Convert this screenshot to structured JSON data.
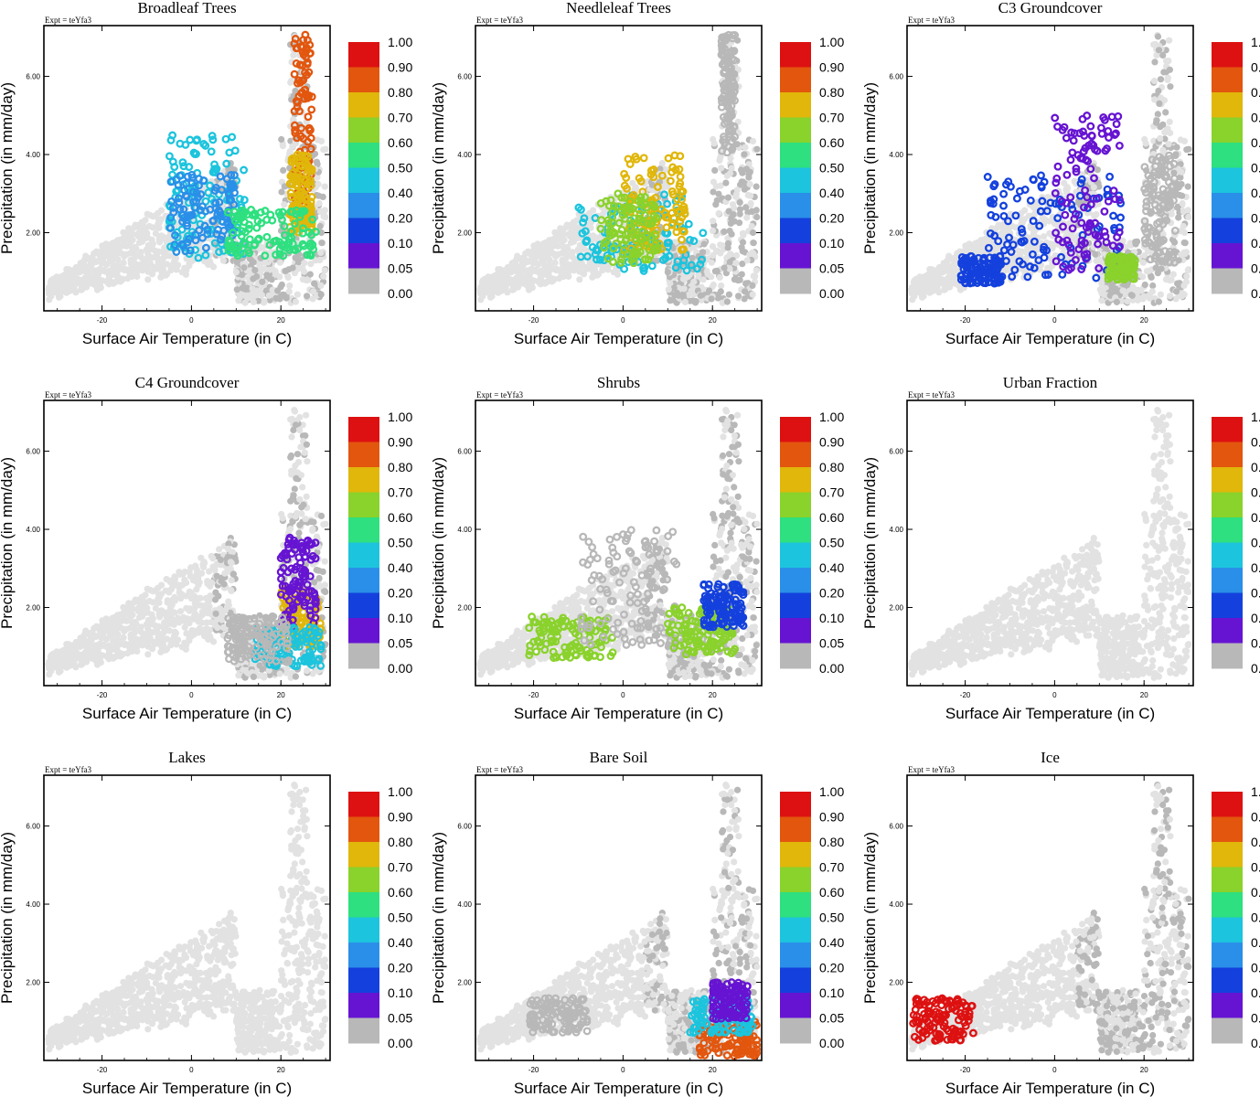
{
  "chart_data": {
    "type": "scatter",
    "layout": "3x3 grid of panels",
    "experiment_label": "Expt = teYfa3",
    "xlabel": "Surface Air Temperature (in C)",
    "ylabel": "Precipitation (in mm/day)",
    "xlim": [
      -33,
      31
    ],
    "ylim": [
      0,
      7.3
    ],
    "x_ticks": [
      "-20",
      "0",
      "20"
    ],
    "x_tick_values": [
      -20,
      0,
      20
    ],
    "y_ticks": [
      "2.00",
      "4.00",
      "6.00"
    ],
    "y_tick_values": [
      2,
      4,
      6
    ],
    "colorbar": {
      "labels": [
        "1.00",
        "0.90",
        "0.80",
        "0.70",
        "0.60",
        "0.50",
        "0.40",
        "0.20",
        "0.10",
        "0.05",
        "0.00"
      ],
      "colors": [
        "#dd1111",
        "#e2560e",
        "#e0b70a",
        "#8ad22c",
        "#2ee07f",
        "#1cc4dd",
        "#2a8fe8",
        "#1441dd",
        "#6614d2",
        "#b8b8b8"
      ]
    },
    "colors": {
      "background_points": "#e2e2e2",
      "zero_points": "#b8b8b8"
    },
    "panels": [
      {
        "title": "Broadleaf Trees",
        "clusters": [
          {
            "x": [
              23,
              27
            ],
            "y": [
              2.2,
              7.1
            ],
            "class": 1
          },
          {
            "x": [
              22,
              27
            ],
            "y": [
              2.0,
              4.0
            ],
            "class": 2
          },
          {
            "x": [
              -5,
              12
            ],
            "y": [
              1.3,
              4.5
            ],
            "class": 5
          },
          {
            "x": [
              -5,
              10
            ],
            "y": [
              1.5,
              3.5
            ],
            "class": 6
          },
          {
            "x": [
              8,
              28
            ],
            "y": [
              1.4,
              2.6
            ],
            "class": 4
          }
        ]
      },
      {
        "title": "Needleleaf Trees",
        "clusters": [
          {
            "x": [
              -10,
              18
            ],
            "y": [
              1.0,
              3.0
            ],
            "class": 5
          },
          {
            "x": [
              0,
              14
            ],
            "y": [
              1.5,
              4.0
            ],
            "class": 2
          },
          {
            "x": [
              -5,
              8
            ],
            "y": [
              1.2,
              3.0
            ],
            "class": 3
          },
          {
            "x": [
              22,
              25
            ],
            "y": [
              4.0,
              7.1
            ],
            "class": 9
          }
        ]
      },
      {
        "title": "C3 Groundcover",
        "clusters": [
          {
            "x": [
              -21,
              -12
            ],
            "y": [
              0.7,
              1.4
            ],
            "class": 7
          },
          {
            "x": [
              -15,
              15
            ],
            "y": [
              0.8,
              3.5
            ],
            "class": 7
          },
          {
            "x": [
              0,
              15
            ],
            "y": [
              1.0,
              5.0
            ],
            "class": 8
          },
          {
            "x": [
              20,
              27
            ],
            "y": [
              1.2,
              4.0
            ],
            "class": 9
          },
          {
            "x": [
              12,
              18
            ],
            "y": [
              0.8,
              1.4
            ],
            "class": 3
          }
        ]
      },
      {
        "title": "C4 Groundcover",
        "clusters": [
          {
            "x": [
              20,
              29
            ],
            "y": [
              1.0,
              2.5
            ],
            "class": 2
          },
          {
            "x": [
              20,
              28
            ],
            "y": [
              1.5,
              3.8
            ],
            "class": 8
          },
          {
            "x": [
              14,
              29
            ],
            "y": [
              0.5,
              1.5
            ],
            "class": 5
          },
          {
            "x": [
              8,
              22
            ],
            "y": [
              0.6,
              1.8
            ],
            "class": 9
          }
        ]
      },
      {
        "title": "Shrubs",
        "clusters": [
          {
            "x": [
              -21,
              -2
            ],
            "y": [
              0.7,
              1.8
            ],
            "class": 3
          },
          {
            "x": [
              -10,
              12
            ],
            "y": [
              1.0,
              4.0
            ],
            "class": 9
          },
          {
            "x": [
              10,
              25
            ],
            "y": [
              0.8,
              2.0
            ],
            "class": 3
          },
          {
            "x": [
              18,
              27
            ],
            "y": [
              1.5,
              2.6
            ],
            "class": 7
          }
        ]
      },
      {
        "title": "Urban Fraction",
        "clusters": []
      },
      {
        "title": "Lakes",
        "clusters": []
      },
      {
        "title": "Bare Soil",
        "clusters": [
          {
            "x": [
              17,
              30
            ],
            "y": [
              0.1,
              1.0
            ],
            "class": 1
          },
          {
            "x": [
              15,
              29
            ],
            "y": [
              0.7,
              1.6
            ],
            "class": 5
          },
          {
            "x": [
              -21,
              -8
            ],
            "y": [
              0.7,
              1.6
            ],
            "class": 9
          },
          {
            "x": [
              20,
              28
            ],
            "y": [
              1.0,
              2.0
            ],
            "class": 8
          }
        ]
      },
      {
        "title": "Ice",
        "clusters": [
          {
            "x": [
              -32,
              -18
            ],
            "y": [
              0.5,
              1.6
            ],
            "class": 0
          }
        ]
      }
    ]
  }
}
